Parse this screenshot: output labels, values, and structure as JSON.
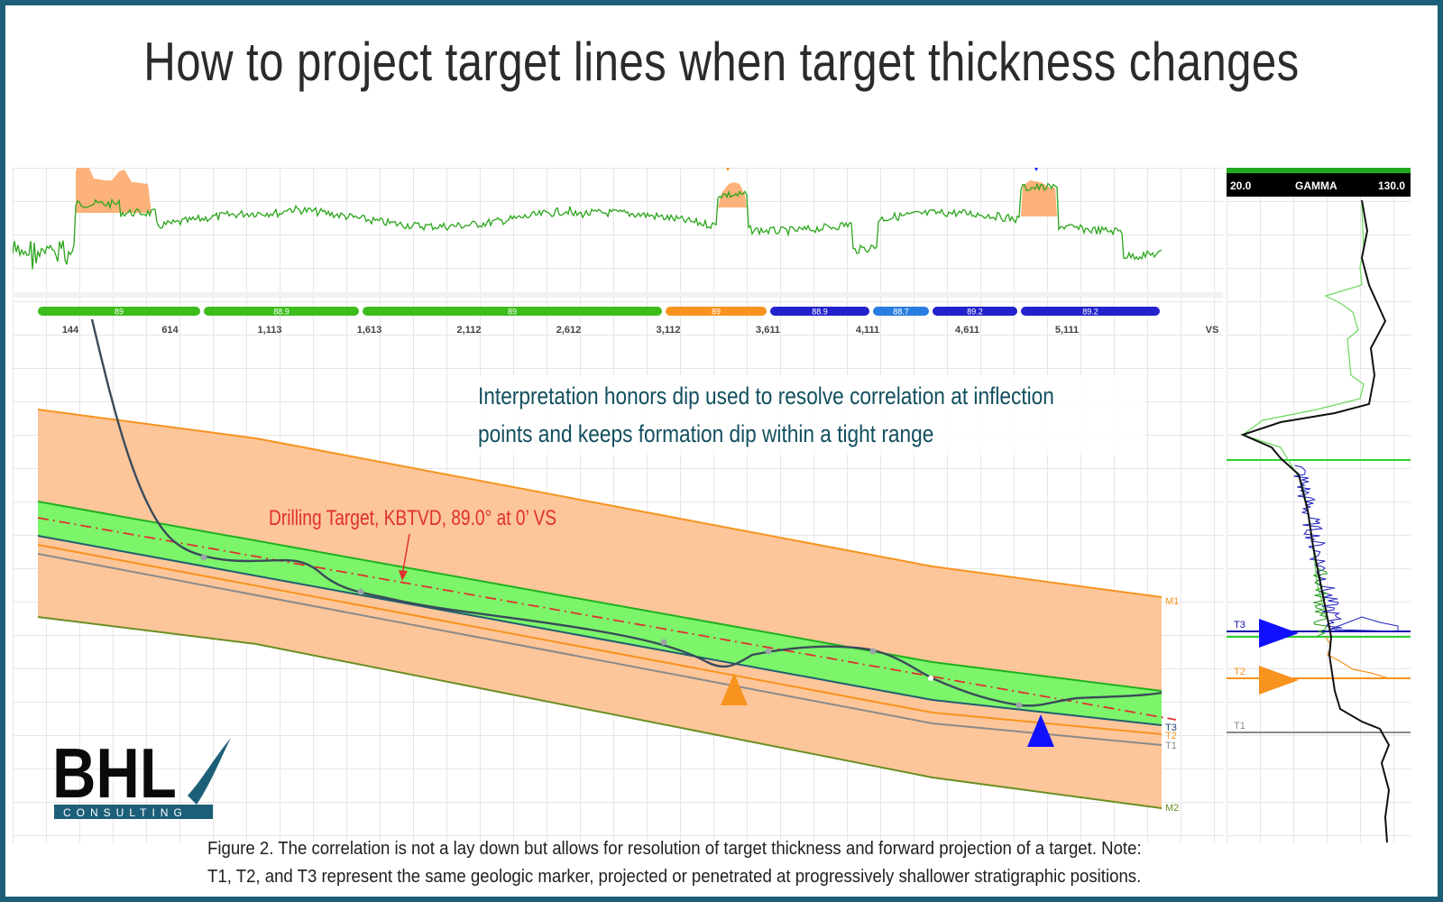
{
  "title": "How to project target lines when target thickness changes",
  "annotation": {
    "line1": "Interpretation honors dip used to resolve correlation at inflection",
    "line2": "points and keeps formation dip within a tight range",
    "target_label": "Drilling Target, KBTVD, 89.0° at 0’ VS"
  },
  "segments": [
    {
      "label": "89",
      "color": "#3dbd1c"
    },
    {
      "label": "88.9",
      "color": "#3dbd1c"
    },
    {
      "label": "89",
      "color": "#3dbd1c"
    },
    {
      "label": "89",
      "color": "#f7931e"
    },
    {
      "label": "88.9",
      "color": "#2222cc"
    },
    {
      "label": "88.7",
      "color": "#2a7de0"
    },
    {
      "label": "89.2",
      "color": "#2222cc"
    },
    {
      "label": "89.2",
      "color": "#2222cc"
    }
  ],
  "vs_ticks": [
    "144",
    "614",
    "1,113",
    "1,613",
    "2,112",
    "2,612",
    "3,112",
    "3,611",
    "4,111",
    "4,611",
    "5,111"
  ],
  "vs_axis_label": "VS",
  "horizon_labels": {
    "m1": "M1",
    "t3": "T3",
    "t2": "T2",
    "t1": "T1",
    "m2": "M2"
  },
  "gamma_track": {
    "min_label": "20.0",
    "title": "GAMMA",
    "max_label": "130.0",
    "markers": {
      "t3": "T3",
      "t2": "T2",
      "t1": "T1"
    }
  },
  "caption": {
    "line1": "Figure 2. The correlation is not a lay down but allows for resolution of target thickness and forward projection of a target. Note:",
    "line2": "T1, T2, and T3 represent the same geologic marker, projected or penetrated at progressively shallower stratigraphic positions."
  },
  "logo": {
    "text": "BHL",
    "subtext": "CONSULTING"
  },
  "colors": {
    "frame": "#1d5f78",
    "orange_fill": "#fcc69a",
    "orange_line": "#f7931e",
    "green_fill": "#7cf56a",
    "green_line": "#1fb01f",
    "well_path": "#3a4a5a",
    "target_line": "#e03030",
    "gamma_green": "#2a9c1e",
    "blue_marker": "#1010ff"
  }
}
